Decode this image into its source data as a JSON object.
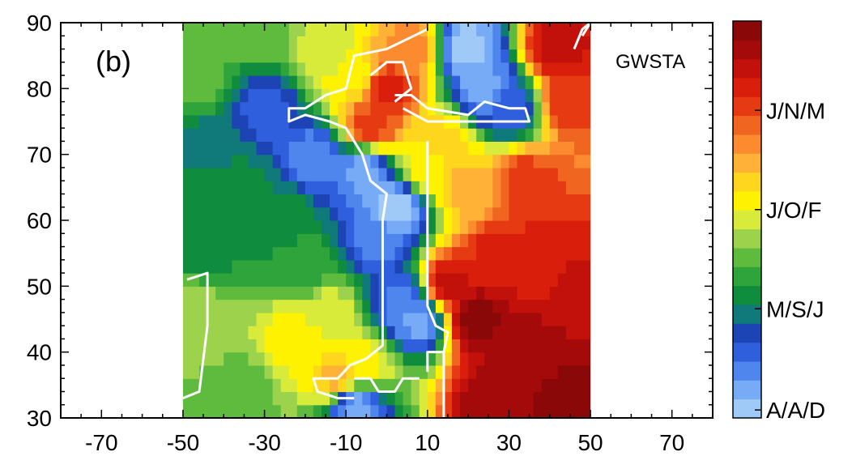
{
  "chart_data": {
    "type": "heatmap",
    "panel_label": "(b)",
    "annotation": "GWSTA",
    "xlim": [
      -80,
      80
    ],
    "ylim": [
      30,
      90
    ],
    "x_ticks": [
      -70,
      -50,
      -30,
      -10,
      10,
      30,
      50,
      70
    ],
    "y_ticks": [
      30,
      40,
      50,
      60,
      70,
      80,
      90
    ],
    "data_x_range": [
      -50,
      50
    ],
    "colorbar": {
      "colors": [
        "#9fc9f7",
        "#77abf5",
        "#4f86ee",
        "#2f5fdc",
        "#1c44b4",
        "#107a7a",
        "#0f8c3d",
        "#2fa43b",
        "#5ebb3e",
        "#9cd24c",
        "#d8ea3a",
        "#fff200",
        "#ffd61e",
        "#ffb236",
        "#fb8b2e",
        "#f06520",
        "#e63a12",
        "#d91e0b",
        "#c2100a",
        "#a50a0a",
        "#8a0808"
      ],
      "labels": [
        {
          "text": "A/A/D",
          "pos": 0.02
        },
        {
          "text": "M/S/J",
          "pos": 0.275
        },
        {
          "text": "J/O/F",
          "pos": 0.525
        },
        {
          "text": "J/N/M",
          "pos": 0.775
        }
      ]
    },
    "field_centers": [
      {
        "x": -46,
        "y": 81,
        "v": 8
      },
      {
        "x": -42,
        "y": 72,
        "v": 5
      },
      {
        "x": -44,
        "y": 58,
        "v": 6
      },
      {
        "x": -38,
        "y": 65,
        "v": 6
      },
      {
        "x": -30,
        "y": 77,
        "v": 3
      },
      {
        "x": -18,
        "y": 70,
        "v": 2
      },
      {
        "x": -26,
        "y": 60,
        "v": 6
      },
      {
        "x": -20,
        "y": 53,
        "v": 7
      },
      {
        "x": -46,
        "y": 44,
        "v": 9
      },
      {
        "x": -36,
        "y": 34,
        "v": 8
      },
      {
        "x": -22,
        "y": 42,
        "v": 11
      },
      {
        "x": -14,
        "y": 46,
        "v": 10
      },
      {
        "x": -12,
        "y": 36,
        "v": 13
      },
      {
        "x": -6,
        "y": 38,
        "v": 11
      },
      {
        "x": -8,
        "y": 32,
        "v": 1
      },
      {
        "x": -32,
        "y": 89,
        "v": 8
      },
      {
        "x": -14,
        "y": 86,
        "v": 10
      },
      {
        "x": -8,
        "y": 82,
        "v": 11
      },
      {
        "x": 0,
        "y": 80,
        "v": 17
      },
      {
        "x": -4,
        "y": 74,
        "v": 16
      },
      {
        "x": 6,
        "y": 86,
        "v": 14
      },
      {
        "x": 20,
        "y": 86,
        "v": 0
      },
      {
        "x": 24,
        "y": 80,
        "v": 1
      },
      {
        "x": 30,
        "y": 77,
        "v": 3
      },
      {
        "x": -6,
        "y": 68,
        "v": 1
      },
      {
        "x": -2,
        "y": 57,
        "v": 2
      },
      {
        "x": 2,
        "y": 62,
        "v": 0
      },
      {
        "x": 4,
        "y": 48,
        "v": 2
      },
      {
        "x": 8,
        "y": 45,
        "v": 1
      },
      {
        "x": 14,
        "y": 72,
        "v": 12
      },
      {
        "x": 20,
        "y": 65,
        "v": 13
      },
      {
        "x": 10,
        "y": 68,
        "v": 11
      },
      {
        "x": 34,
        "y": 66,
        "v": 16
      },
      {
        "x": 45,
        "y": 78,
        "v": 16
      },
      {
        "x": 42,
        "y": 86,
        "v": 18
      },
      {
        "x": 28,
        "y": 55,
        "v": 17
      },
      {
        "x": 40,
        "y": 55,
        "v": 17
      },
      {
        "x": 22,
        "y": 45,
        "v": 20
      },
      {
        "x": 35,
        "y": 40,
        "v": 19
      },
      {
        "x": 45,
        "y": 33,
        "v": 20
      },
      {
        "x": 26,
        "y": 33,
        "v": 19
      },
      {
        "x": 15,
        "y": 50,
        "v": 18
      },
      {
        "x": 48,
        "y": 50,
        "v": 18
      }
    ]
  }
}
